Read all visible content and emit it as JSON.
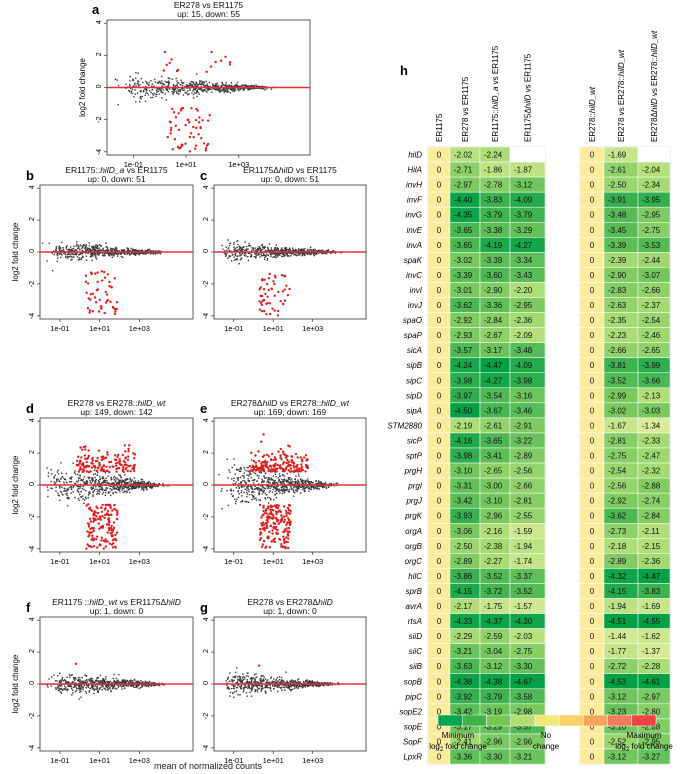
{
  "panel_letters": [
    "a",
    "b",
    "c",
    "d",
    "e",
    "f",
    "g",
    "h"
  ],
  "shared": {
    "ylabel": "log2 fold change",
    "xlabel": "mean of normalized counts",
    "xticks": [
      "1e-01",
      "1e+01",
      "1e+03"
    ],
    "yticks": [
      "-4",
      "-2",
      "0",
      "2",
      "4"
    ]
  },
  "chart_data": [
    {
      "panel": "a",
      "type": "scatter",
      "title_parts": [
        "ER278 vs ER1175"
      ],
      "title_italic": [
        false
      ],
      "subtitle": "up: 15, down: 55",
      "up": 15,
      "down": 55,
      "xlabel": "",
      "ylabel": "log2 fold change",
      "xscale": "log",
      "ylim": [
        -4.2,
        4.2
      ]
    },
    {
      "panel": "b",
      "type": "scatter",
      "title_parts": [
        "ER1175::",
        "hilD_a",
        " vs ER1175"
      ],
      "title_italic": [
        false,
        true,
        false
      ],
      "subtitle": "up: 0, down: 51",
      "up": 0,
      "down": 51,
      "xlabel": "",
      "ylabel": "log2 fold change",
      "xscale": "log",
      "ylim": [
        -4.2,
        4.2
      ]
    },
    {
      "panel": "c",
      "type": "scatter",
      "title_parts": [
        "ER1175Δ",
        "hilD",
        " vs ER1175"
      ],
      "title_italic": [
        false,
        true,
        false
      ],
      "subtitle": "up: 0, down: 51",
      "up": 0,
      "down": 51,
      "xlabel": "",
      "ylabel": "",
      "xscale": "log",
      "ylim": [
        -4.2,
        4.2
      ]
    },
    {
      "panel": "d",
      "type": "scatter",
      "title_parts": [
        "ER278 vs ER278::",
        "hilD_wt"
      ],
      "title_italic": [
        false,
        true
      ],
      "subtitle": "up: 149, down: 142",
      "up": 149,
      "down": 142,
      "xlabel": "",
      "ylabel": "log2 fold change",
      "xscale": "log",
      "ylim": [
        -4.2,
        4.2
      ]
    },
    {
      "panel": "e",
      "type": "scatter",
      "title_parts": [
        "ER278Δ",
        "hilD",
        " vs ER278::",
        "hilD_wt"
      ],
      "title_italic": [
        false,
        true,
        false,
        true
      ],
      "subtitle": "up: 169, down: 169",
      "up": 169,
      "down": 169,
      "xlabel": "",
      "ylabel": "",
      "xscale": "log",
      "ylim": [
        -4.2,
        4.2
      ]
    },
    {
      "panel": "f",
      "type": "scatter",
      "title_parts": [
        "ER1175 ::",
        "hilD_wt",
        " vs ER1175Δ",
        "hilD"
      ],
      "title_italic": [
        false,
        true,
        false,
        true
      ],
      "subtitle": "up: 1, down: 0",
      "up": 1,
      "down": 0,
      "xlabel": "",
      "ylabel": "log2 fold change",
      "xscale": "log",
      "ylim": [
        -4.2,
        4.2
      ]
    },
    {
      "panel": "g",
      "type": "scatter",
      "title_parts": [
        "ER278 vs ER278Δ",
        "hilD"
      ],
      "title_italic": [
        false,
        true
      ],
      "subtitle": "up: 1, down: 0",
      "up": 1,
      "down": 0,
      "xlabel": "",
      "ylabel": "",
      "xscale": "log",
      "ylim": [
        -4.2,
        4.2
      ]
    },
    {
      "panel": "h",
      "type": "heatmap",
      "columns": [
        {
          "parts": [
            "ER1175"
          ],
          "italic": [
            false
          ]
        },
        {
          "parts": [
            "ER278 vs ER1175"
          ],
          "italic": [
            false
          ]
        },
        {
          "parts": [
            "ER1175::",
            "hilD_a",
            " vs ER1175"
          ],
          "italic": [
            false,
            true,
            false
          ]
        },
        {
          "parts": [
            "ER1175Δ",
            "hilD",
            " vs ER1175"
          ],
          "italic": [
            false,
            true,
            false
          ]
        },
        {
          "parts": [
            "ER278::",
            "hilD_wt"
          ],
          "italic": [
            false,
            true
          ]
        },
        {
          "parts": [
            "ER278 vs ER278::",
            "hilD_wt"
          ],
          "italic": [
            false,
            true
          ]
        },
        {
          "parts": [
            "ER278Δ",
            "hilD",
            " vs ER278::",
            "hilD_wt"
          ],
          "italic": [
            false,
            true,
            false,
            true
          ]
        }
      ],
      "rows": [
        "hilD",
        "HilA",
        "invH",
        "invF",
        "invG",
        "invE",
        "invA",
        "spaK",
        "invC",
        "invI",
        "invJ",
        "spaO",
        "spaP",
        "sicA",
        "sipB",
        "sipC",
        "sipD",
        "sipA",
        "STM2880",
        "sicP",
        "sptP",
        "prgH",
        "prgI",
        "prgJ",
        "prgK",
        "orgA",
        "orgB",
        "orgC",
        "hilC",
        "sprB",
        "avrA",
        "rtsA",
        "siiD",
        "siiC",
        "siiB",
        "sopB",
        "pipC",
        "sopE2",
        "sopE",
        "SopF",
        "LpxR"
      ],
      "values": [
        [
          0,
          -2.02,
          -2.24,
          null,
          0,
          -1.69,
          null
        ],
        [
          0,
          -2.71,
          -1.86,
          -1.87,
          0,
          -2.61,
          -2.04
        ],
        [
          0,
          -2.97,
          -2.78,
          -3.12,
          0,
          -2.5,
          -2.34
        ],
        [
          0,
          -4.4,
          -3.83,
          -4.09,
          0,
          -3.91,
          -3.95
        ],
        [
          0,
          -4.35,
          -3.79,
          -3.79,
          0,
          -3.48,
          -2.95
        ],
        [
          0,
          -3.65,
          -3.38,
          -3.29,
          0,
          -3.45,
          -2.75
        ],
        [
          0,
          -3.65,
          -4.19,
          -4.27,
          0,
          -3.39,
          -3.53
        ],
        [
          0,
          -3.02,
          -3.39,
          -3.34,
          0,
          -2.39,
          -2.44
        ],
        [
          0,
          -3.39,
          -3.6,
          -3.43,
          0,
          -2.9,
          -3.07
        ],
        [
          0,
          -3.01,
          -2.9,
          -2.2,
          0,
          -2.83,
          -2.66
        ],
        [
          0,
          -3.62,
          -3.36,
          -2.95,
          0,
          -2.63,
          -2.37
        ],
        [
          0,
          -2.92,
          -2.84,
          -2.36,
          0,
          -2.35,
          -2.54
        ],
        [
          0,
          -2.93,
          -2.67,
          -2.09,
          0,
          -2.23,
          -2.46
        ],
        [
          0,
          -3.57,
          -3.17,
          -3.48,
          0,
          -2.66,
          -2.65
        ],
        [
          0,
          -4.24,
          -4.47,
          -4.09,
          0,
          -3.81,
          -3.99
        ],
        [
          0,
          -3.98,
          -4.27,
          -3.98,
          0,
          -3.52,
          -3.66
        ],
        [
          0,
          -3.97,
          -3.54,
          -3.16,
          0,
          -2.99,
          -2.13
        ],
        [
          0,
          -4.5,
          -3.67,
          -3.46,
          0,
          -3.02,
          -3.03
        ],
        [
          0,
          -2.19,
          -2.61,
          -2.91,
          0,
          -1.67,
          -1.34
        ],
        [
          0,
          -4.16,
          -3.65,
          -3.22,
          0,
          -2.81,
          -2.33
        ],
        [
          0,
          -3.98,
          -3.41,
          -2.89,
          0,
          -2.75,
          -2.47
        ],
        [
          0,
          -3.1,
          -2.65,
          -2.56,
          0,
          -2.54,
          -2.32
        ],
        [
          0,
          -3.31,
          -3.0,
          -2.66,
          0,
          -2.56,
          -2.88
        ],
        [
          0,
          -3.42,
          -3.1,
          -2.81,
          0,
          -2.92,
          -2.74
        ],
        [
          0,
          -3.93,
          -2.96,
          -2.55,
          0,
          -3.62,
          -2.84
        ],
        [
          0,
          -3.06,
          -2.16,
          -1.59,
          0,
          -2.73,
          -2.11
        ],
        [
          0,
          -2.5,
          -2.38,
          -1.94,
          0,
          -2.18,
          -2.15
        ],
        [
          0,
          -2.89,
          -2.27,
          -1.74,
          0,
          -2.89,
          -2.36
        ],
        [
          0,
          -3.86,
          -3.52,
          -3.37,
          0,
          -4.32,
          -4.47
        ],
        [
          0,
          -4.15,
          -3.72,
          -3.52,
          0,
          -4.15,
          -3.83
        ],
        [
          0,
          -2.17,
          -1.75,
          -1.57,
          0,
          -1.94,
          -1.69
        ],
        [
          0,
          -4.33,
          -4.37,
          -4.3,
          0,
          -4.51,
          -4.55
        ],
        [
          0,
          -2.29,
          -2.59,
          -2.03,
          0,
          -1.44,
          -1.62
        ],
        [
          0,
          -3.21,
          -3.04,
          -2.75,
          0,
          -1.77,
          -1.37
        ],
        [
          0,
          -3.63,
          -3.12,
          -3.3,
          0,
          -2.72,
          -2.28
        ],
        [
          0,
          -4.38,
          -4.38,
          -4.67,
          0,
          -4.53,
          -4.61
        ],
        [
          0,
          -3.92,
          -3.79,
          -3.58,
          0,
          -3.12,
          -2.97
        ],
        [
          0,
          -3.42,
          -3.19,
          -2.98,
          0,
          -3.23,
          -2.8
        ],
        [
          0,
          -3.17,
          -3.29,
          -3.57,
          0,
          -3.1,
          -2.88
        ],
        [
          0,
          -2.41,
          -2.96,
          -2.96,
          0,
          -2.52,
          -2.95
        ],
        [
          0,
          -3.36,
          -3.3,
          -3.21,
          0,
          -3.12,
          -3.27
        ]
      ],
      "legend": {
        "colors": [
          "#00a651",
          "#3cb44b",
          "#78c850",
          "#b4dc6e",
          "#f0e878",
          "#f9d16b",
          "#f7a45e",
          "#f27c57",
          "#ee4343"
        ],
        "left_label": [
          "Minimum",
          "log",
          "2",
          " fold change"
        ],
        "center_label": [
          "No",
          "change"
        ],
        "right_label": [
          "Maximum",
          "log",
          "2",
          " fold change"
        ]
      }
    }
  ]
}
